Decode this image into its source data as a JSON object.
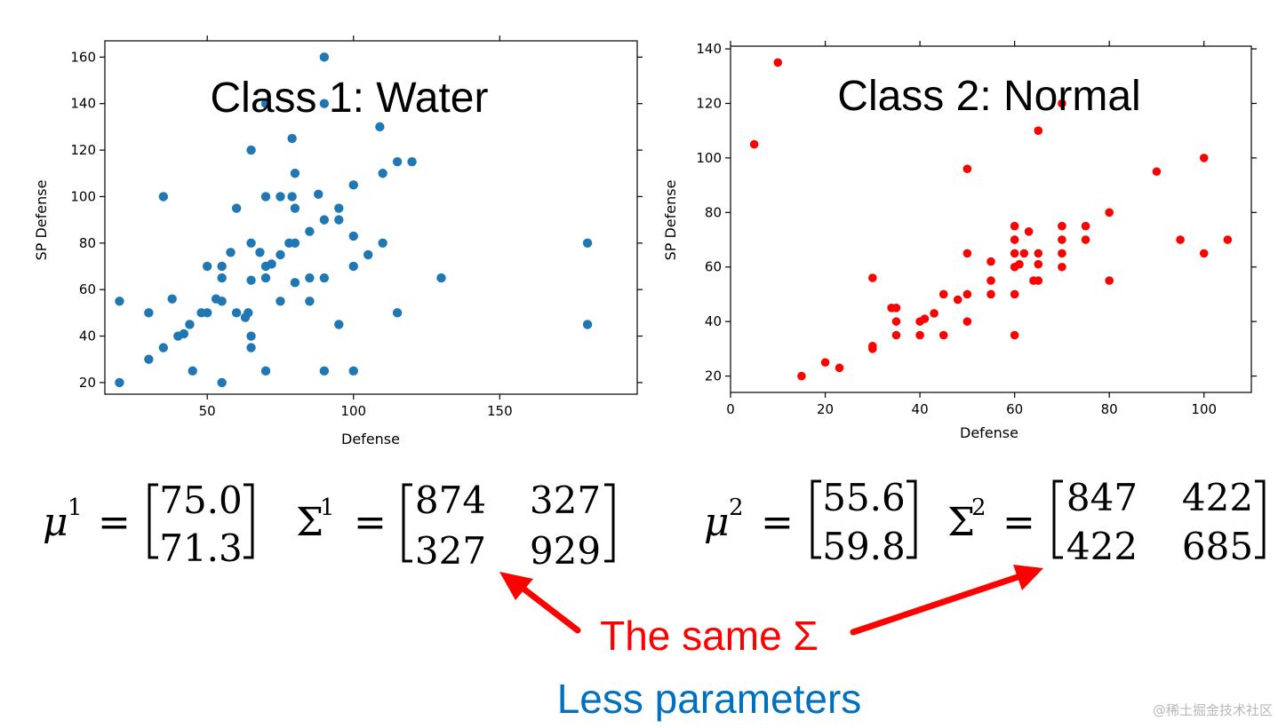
{
  "chart_data": [
    {
      "type": "scatter",
      "title": "Class 1: Water",
      "xlabel": "Defense",
      "ylabel": "SP Defense",
      "xlim": [
        15,
        197
      ],
      "ylim": [
        15,
        167
      ],
      "xticks": [
        50,
        100,
        150
      ],
      "yticks": [
        20,
        40,
        60,
        80,
        100,
        120,
        140,
        160
      ],
      "grid": false,
      "color": "#1f77b4",
      "points": [
        [
          20,
          55
        ],
        [
          20,
          20
        ],
        [
          30,
          50
        ],
        [
          30,
          30
        ],
        [
          35,
          35
        ],
        [
          35,
          100
        ],
        [
          38,
          56
        ],
        [
          40,
          40
        ],
        [
          42,
          41
        ],
        [
          44,
          45
        ],
        [
          45,
          25
        ],
        [
          48,
          50
        ],
        [
          50,
          50
        ],
        [
          50,
          70
        ],
        [
          53,
          56
        ],
        [
          55,
          55
        ],
        [
          55,
          65
        ],
        [
          55,
          70
        ],
        [
          55,
          20
        ],
        [
          58,
          76
        ],
        [
          60,
          95
        ],
        [
          60,
          50
        ],
        [
          63,
          48
        ],
        [
          64,
          50
        ],
        [
          65,
          120
        ],
        [
          65,
          80
        ],
        [
          65,
          64
        ],
        [
          65,
          40
        ],
        [
          65,
          35
        ],
        [
          68,
          76
        ],
        [
          70,
          140
        ],
        [
          70,
          100
        ],
        [
          70,
          70
        ],
        [
          70,
          65
        ],
        [
          70,
          25
        ],
        [
          72,
          71
        ],
        [
          75,
          100
        ],
        [
          75,
          75
        ],
        [
          75,
          55
        ],
        [
          78,
          80
        ],
        [
          79,
          125
        ],
        [
          79,
          100
        ],
        [
          80,
          110
        ],
        [
          80,
          95
        ],
        [
          80,
          80
        ],
        [
          80,
          63
        ],
        [
          85,
          85
        ],
        [
          85,
          65
        ],
        [
          85,
          55
        ],
        [
          88,
          101
        ],
        [
          90,
          160
        ],
        [
          90,
          140
        ],
        [
          90,
          90
        ],
        [
          90,
          65
        ],
        [
          90,
          25
        ],
        [
          95,
          95
        ],
        [
          95,
          90
        ],
        [
          95,
          45
        ],
        [
          100,
          105
        ],
        [
          100,
          83
        ],
        [
          100,
          70
        ],
        [
          100,
          25
        ],
        [
          105,
          75
        ],
        [
          109,
          130
        ],
        [
          110,
          110
        ],
        [
          110,
          80
        ],
        [
          115,
          115
        ],
        [
          115,
          50
        ],
        [
          120,
          115
        ],
        [
          130,
          65
        ],
        [
          180,
          80
        ],
        [
          180,
          45
        ]
      ]
    },
    {
      "type": "scatter",
      "title": "Class 2: Normal",
      "xlabel": "Defense",
      "ylabel": "",
      "xlim": [
        0,
        110
      ],
      "ylim": [
        14,
        141
      ],
      "xticks": [
        0,
        20,
        40,
        60,
        80,
        100
      ],
      "yticks": [
        20,
        40,
        60,
        80,
        100,
        120,
        140
      ],
      "grid": false,
      "color": "#ff0000",
      "points": [
        [
          5,
          105
        ],
        [
          10,
          135
        ],
        [
          15,
          20
        ],
        [
          20,
          25
        ],
        [
          23,
          23
        ],
        [
          30,
          56
        ],
        [
          30,
          31
        ],
        [
          30,
          30
        ],
        [
          34,
          45
        ],
        [
          35,
          45
        ],
        [
          35,
          40
        ],
        [
          35,
          35
        ],
        [
          40,
          40
        ],
        [
          40,
          35
        ],
        [
          41,
          41
        ],
        [
          43,
          43
        ],
        [
          45,
          50
        ],
        [
          45,
          35
        ],
        [
          48,
          48
        ],
        [
          50,
          96
        ],
        [
          50,
          65
        ],
        [
          50,
          50
        ],
        [
          50,
          40
        ],
        [
          55,
          62
        ],
        [
          55,
          55
        ],
        [
          55,
          50
        ],
        [
          60,
          75
        ],
        [
          60,
          70
        ],
        [
          60,
          65
        ],
        [
          60,
          60
        ],
        [
          60,
          50
        ],
        [
          60,
          35
        ],
        [
          61,
          61
        ],
        [
          62,
          65
        ],
        [
          63,
          73
        ],
        [
          64,
          55
        ],
        [
          65,
          65
        ],
        [
          65,
          61
        ],
        [
          65,
          55
        ],
        [
          65,
          110
        ],
        [
          70,
          120
        ],
        [
          70,
          75
        ],
        [
          70,
          70
        ],
        [
          70,
          65
        ],
        [
          70,
          60
        ],
        [
          75,
          75
        ],
        [
          75,
          70
        ],
        [
          80,
          80
        ],
        [
          80,
          55
        ],
        [
          90,
          95
        ],
        [
          95,
          70
        ],
        [
          100,
          100
        ],
        [
          100,
          65
        ],
        [
          105,
          70
        ]
      ]
    }
  ],
  "formulas": {
    "mu1_label": "μ",
    "mu1_sup": "1",
    "mu1_values": [
      "75.0",
      "71.3"
    ],
    "sigma1_label": "Σ",
    "sigma1_sup": "1",
    "sigma1_matrix": [
      [
        "874",
        "327"
      ],
      [
        "327",
        "929"
      ]
    ],
    "mu2_label": "μ",
    "mu2_sup": "2",
    "mu2_values": [
      "55.6",
      "59.8"
    ],
    "sigma2_label": "Σ",
    "sigma2_sup": "2",
    "sigma2_matrix": [
      [
        "847",
        "422"
      ],
      [
        "422",
        "685"
      ]
    ],
    "equals": "="
  },
  "annotation": {
    "same_sigma": "The same Σ",
    "less_params": "Less parameters",
    "arrow_color": "#ff0000",
    "same_sigma_color": "#ff0000",
    "less_params_color": "#0070c0"
  },
  "watermark": "@稀土掘金技术社区"
}
